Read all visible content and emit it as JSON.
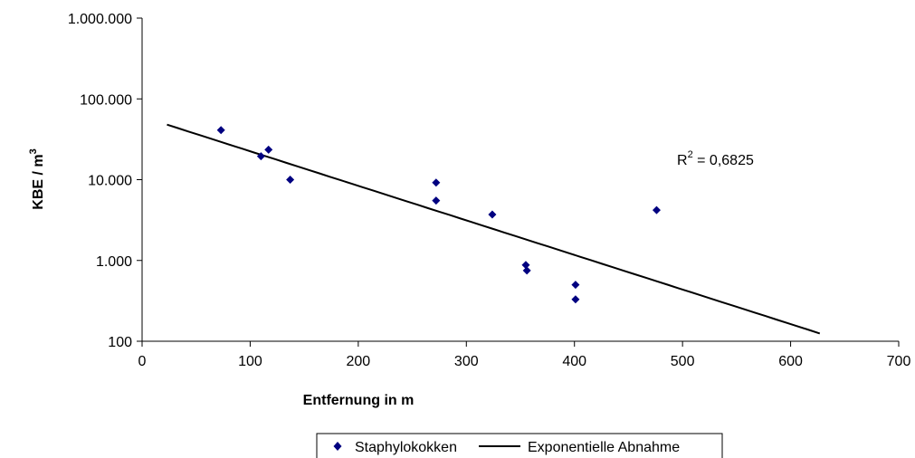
{
  "chart_data": {
    "type": "scatter",
    "x_axis": {
      "label": "Entfernung in m",
      "range": [
        0,
        700
      ],
      "ticks": [
        0,
        100,
        200,
        300,
        400,
        500,
        600,
        700
      ],
      "tick_labels": [
        "0",
        "100",
        "200",
        "300",
        "400",
        "500",
        "600",
        "700"
      ]
    },
    "y_axis": {
      "label": "KBE / m",
      "label_superscript": "3",
      "scale": "log",
      "range": [
        100,
        1000000
      ],
      "ticks": [
        100,
        1000,
        10000,
        100000,
        1000000
      ],
      "tick_labels": [
        "100",
        "1.000",
        "10.000",
        "100.000",
        "1.000.000"
      ]
    },
    "grid": false,
    "series": [
      {
        "name": "Staphylokokken",
        "kind": "scatter",
        "marker": "diamond",
        "color": "#000080",
        "points": [
          {
            "x": 73,
            "y": 41000
          },
          {
            "x": 110,
            "y": 19500
          },
          {
            "x": 117,
            "y": 23500
          },
          {
            "x": 137,
            "y": 10000
          },
          {
            "x": 272,
            "y": 9200
          },
          {
            "x": 272,
            "y": 5500
          },
          {
            "x": 324,
            "y": 3700
          },
          {
            "x": 355,
            "y": 880
          },
          {
            "x": 356,
            "y": 750
          },
          {
            "x": 401,
            "y": 500
          },
          {
            "x": 401,
            "y": 330
          },
          {
            "x": 476,
            "y": 4200
          }
        ]
      },
      {
        "name": "Exponentielle Abnahme",
        "kind": "trendline",
        "color": "#000000",
        "x": [
          23,
          627
        ],
        "y": [
          48000,
          125
        ]
      }
    ],
    "annotation": {
      "text": "R",
      "superscript": "2",
      "suffix": " = 0,6825"
    },
    "legend": {
      "position": "bottom",
      "entries": [
        "Staphylokokken",
        "Exponentielle Abnahme"
      ]
    }
  }
}
